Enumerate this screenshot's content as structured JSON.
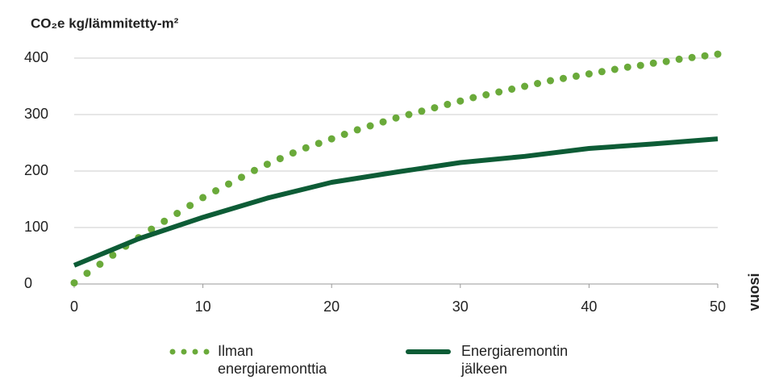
{
  "chart_data": {
    "type": "line",
    "title": "CO₂e kg/lämmitetty-m²",
    "xlabel": "vuosi",
    "xlim": [
      0,
      50
    ],
    "xticks": [
      0,
      10,
      20,
      30,
      40,
      50
    ],
    "ylim": [
      0,
      400
    ],
    "yticks": [
      0,
      100,
      200,
      300,
      400
    ],
    "grid": true,
    "legend": "bottom",
    "series": [
      {
        "name": "Ilman energiaremonttia",
        "color": "#6aaa3a",
        "style": "dotted",
        "x": [
          0,
          1,
          2,
          3,
          4,
          5,
          6,
          7,
          8,
          9,
          10,
          11,
          12,
          13,
          14,
          15,
          16,
          17,
          18,
          19,
          20,
          21,
          22,
          23,
          24,
          25,
          26,
          27,
          28,
          29,
          30,
          31,
          32,
          33,
          34,
          35,
          36,
          37,
          38,
          39,
          40,
          41,
          42,
          43,
          44,
          45,
          46,
          47,
          48,
          49,
          50
        ],
        "values": [
          2,
          19,
          35,
          51,
          67,
          82,
          97,
          111,
          125,
          139,
          153,
          165,
          177,
          189,
          201,
          212,
          222,
          232,
          241,
          249,
          257,
          265,
          273,
          280,
          287,
          294,
          300,
          306,
          312,
          318,
          324,
          330,
          335,
          340,
          345,
          350,
          355,
          360,
          364,
          368,
          372,
          376,
          380,
          384,
          387,
          391,
          394,
          398,
          401,
          404,
          407
        ]
      },
      {
        "name": "Energiaremontin jälkeen",
        "color": "#0d5c36",
        "style": "solid",
        "x": [
          0,
          5,
          10,
          15,
          20,
          25,
          30,
          35,
          40,
          45,
          50
        ],
        "values": [
          33,
          80,
          118,
          152,
          180,
          198,
          215,
          226,
          240,
          248,
          257
        ]
      }
    ]
  }
}
